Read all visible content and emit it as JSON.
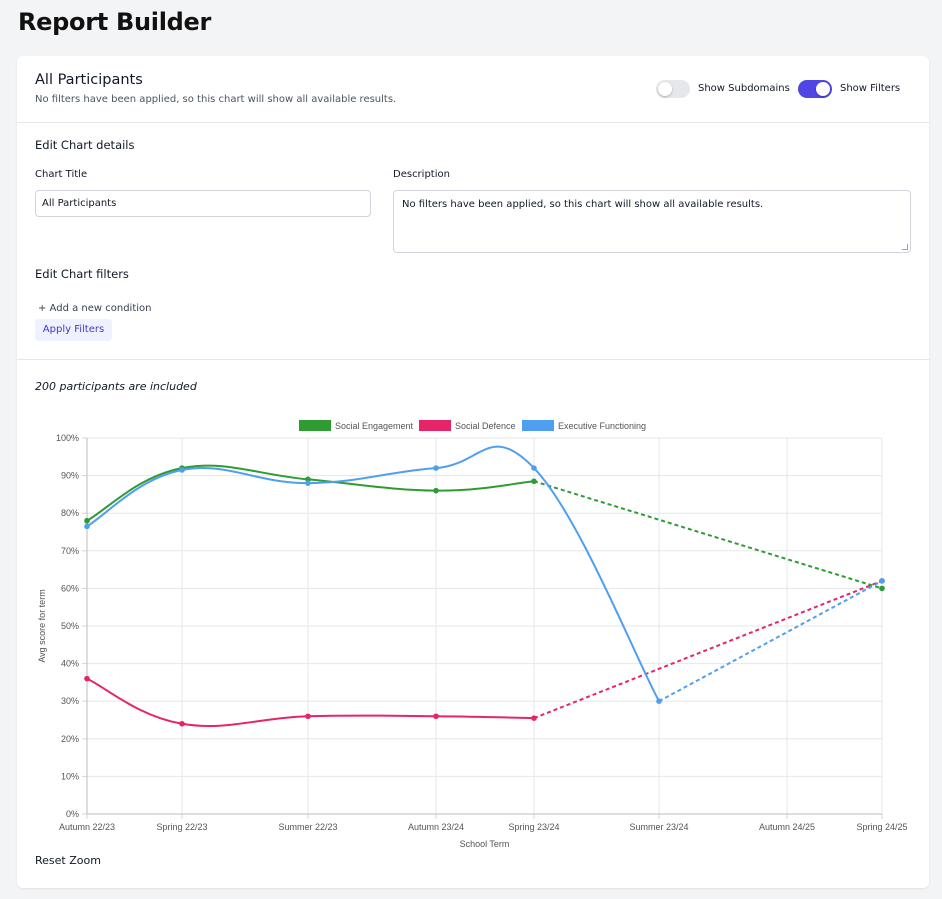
{
  "page": {
    "title": "Report Builder"
  },
  "header": {
    "chart_name": "All Participants",
    "subtitle": "No filters have been applied, so this chart will show all available results.",
    "toggles": [
      {
        "label": "Show Subdomains",
        "on": false
      },
      {
        "label": "Show Filters",
        "on": true
      }
    ]
  },
  "details": {
    "section_title": "Edit Chart details",
    "title_label": "Chart Title",
    "title_value": "All Participants",
    "description_label": "Description",
    "description_value": "No filters have been applied, so this chart will show all available results."
  },
  "filters": {
    "section_title": "Edit Chart filters",
    "add_condition": "+ Add a new condition",
    "apply_button": "Apply Filters"
  },
  "summary": {
    "included_text": "200 participants are included"
  },
  "reset_zoom": "Reset Zoom",
  "colors": {
    "accent": "#4f46e5",
    "engagement": "#2e9b33",
    "defence": "#e6246a",
    "executive": "#4f9ff0"
  },
  "chart_data": {
    "type": "line",
    "xlabel": "School Term",
    "ylabel": "Avg score for term",
    "ylim": [
      0,
      100
    ],
    "y_ticks": [
      "0%",
      "10%",
      "20%",
      "30%",
      "40%",
      "50%",
      "60%",
      "70%",
      "80%",
      "90%",
      "100%"
    ],
    "categories": [
      "Autumn 22/23",
      "Spring 22/23",
      "Summer 22/23",
      "Autumn 23/24",
      "Spring 23/24",
      "Summer 23/24",
      "Autumn 24/25",
      "Spring 24/25"
    ],
    "grid": true,
    "legend_position": "top",
    "series": [
      {
        "name": "Social Engagement",
        "color": "#2e9b33",
        "values": [
          78,
          92,
          89,
          86,
          88.5,
          null,
          null,
          60
        ],
        "projected_from": 4
      },
      {
        "name": "Social Defence",
        "color": "#e6246a",
        "values": [
          36,
          24,
          26,
          26,
          25.5,
          null,
          null,
          62
        ],
        "projected_from": 4
      },
      {
        "name": "Executive Functioning",
        "color": "#4f9ff0",
        "values": [
          76.5,
          91.5,
          88,
          92,
          92,
          30,
          null,
          62
        ],
        "projected_from": 5
      }
    ]
  }
}
